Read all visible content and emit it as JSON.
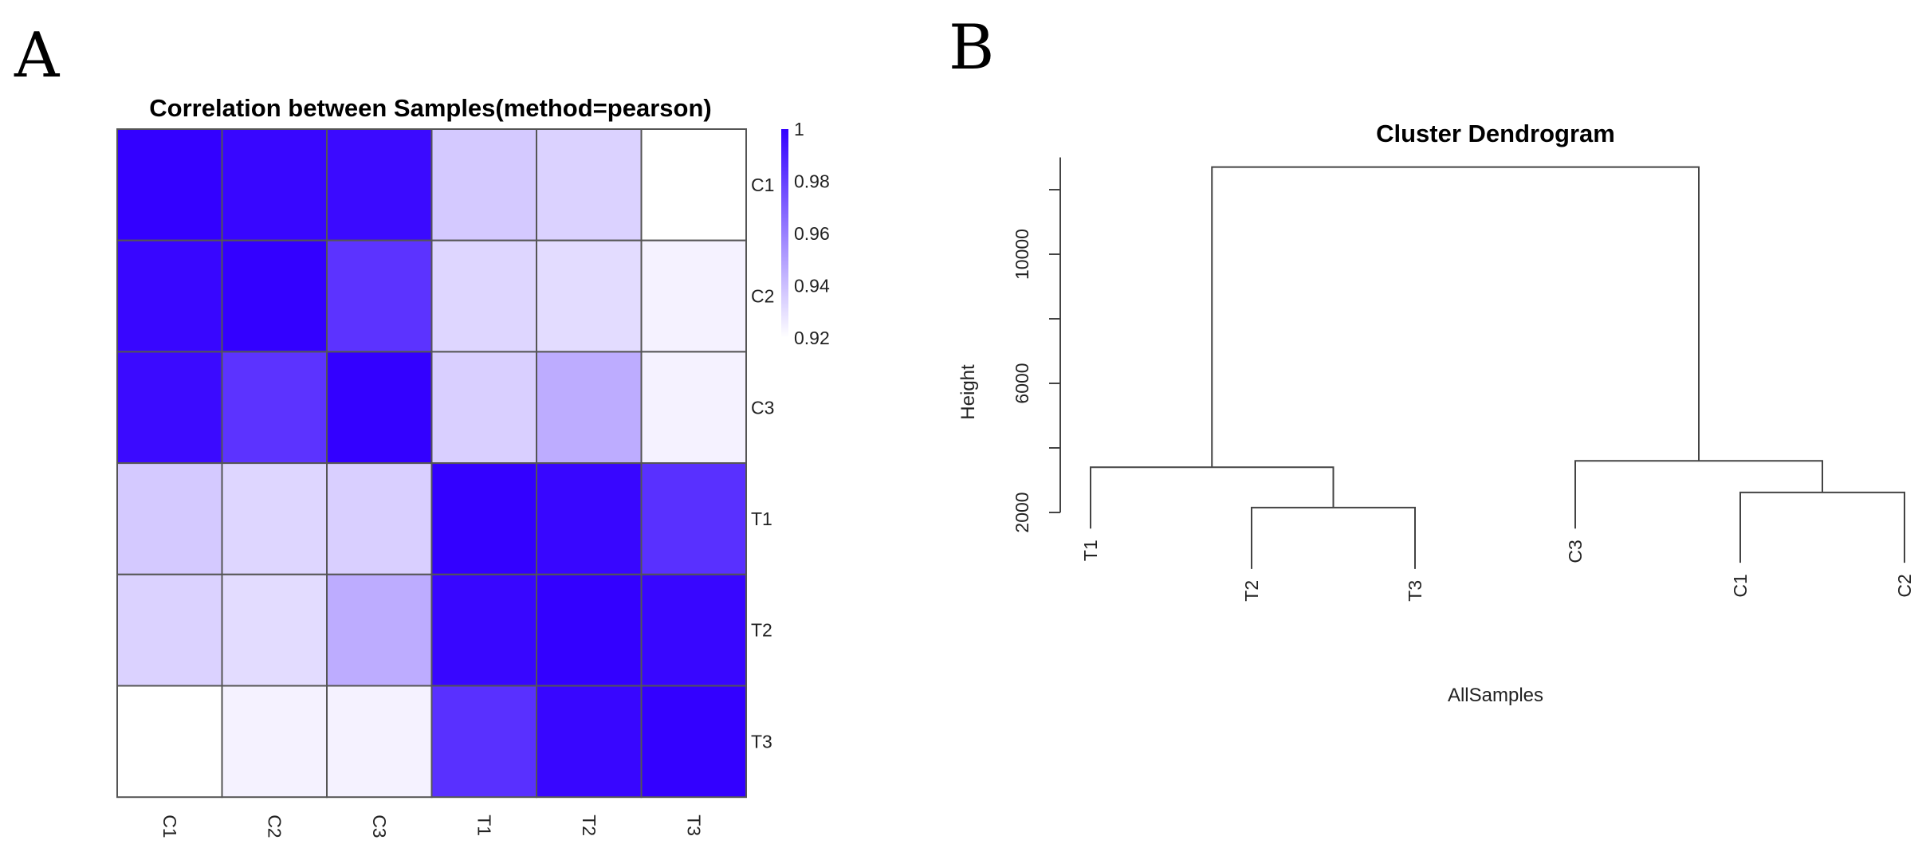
{
  "panels": {
    "a_label": "A",
    "b_label": "B"
  },
  "chart_data": [
    {
      "type": "heatmap",
      "title": "Correlation between Samples(method=pearson)",
      "rows": [
        "C1",
        "C2",
        "C3",
        "T1",
        "T2",
        "T3"
      ],
      "columns": [
        "C1",
        "C2",
        "C3",
        "T1",
        "T2",
        "T3"
      ],
      "values": [
        [
          1.0,
          0.998,
          0.997,
          0.937,
          0.934,
          0.92
        ],
        [
          0.998,
          1.0,
          0.984,
          0.933,
          0.931,
          0.924
        ],
        [
          0.997,
          0.984,
          1.0,
          0.935,
          0.946,
          0.924
        ],
        [
          0.937,
          0.933,
          0.935,
          1.0,
          0.998,
          0.985
        ],
        [
          0.934,
          0.931,
          0.946,
          0.998,
          1.0,
          0.998
        ],
        [
          0.92,
          0.924,
          0.924,
          0.985,
          0.998,
          1.0
        ]
      ],
      "color_scale": {
        "min": 0.92,
        "max": 1,
        "low_color": "#ffffff",
        "high_color": "#3300ff"
      },
      "legend_ticks": [
        "1",
        "0.98",
        "0.96",
        "0.94",
        "0.92"
      ],
      "legend_tick_values": [
        1,
        0.98,
        0.96,
        0.94,
        0.92
      ]
    },
    {
      "type": "dendrogram",
      "title": "Cluster Dendrogram",
      "xlabel": "AllSamples",
      "ylabel": "Height",
      "yticks": [
        "2000",
        "6000",
        "10000"
      ],
      "ytick_values": [
        2000,
        6000,
        10000
      ],
      "ylim": [
        2000,
        13000
      ],
      "leaves": [
        {
          "label": "T1",
          "height": 1500
        },
        {
          "label": "T2",
          "height": 250
        },
        {
          "label": "T3",
          "height": 250
        },
        {
          "label": "C3",
          "height": 1500
        },
        {
          "label": "C1",
          "height": 440
        },
        {
          "label": "C2",
          "height": 440
        }
      ],
      "merges": [
        {
          "left": "T2",
          "right": "T3",
          "height": 2150
        },
        {
          "left": "T1",
          "right": "T2+T3",
          "height": 3400
        },
        {
          "left": "C1",
          "right": "C2",
          "height": 2620
        },
        {
          "left": "C3",
          "right": "C1+C2",
          "height": 3600
        },
        {
          "left": "T-cluster",
          "right": "C-cluster",
          "height": 12700
        }
      ]
    }
  ]
}
